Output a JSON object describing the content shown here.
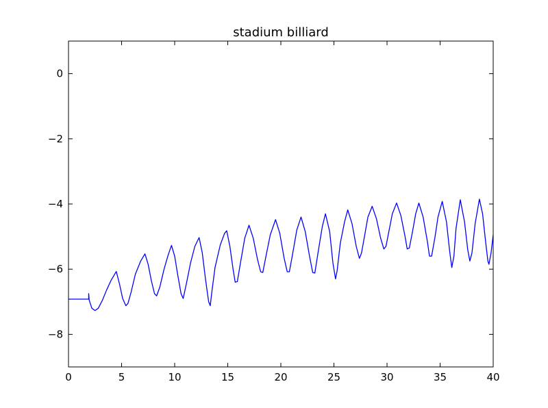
{
  "chart_data": {
    "type": "line",
    "title": "stadium billiard",
    "xlabel": "",
    "ylabel": "",
    "xlim": [
      0,
      40
    ],
    "ylim": [
      -9,
      1
    ],
    "x_ticks": [
      0,
      5,
      10,
      15,
      20,
      25,
      30,
      35,
      40
    ],
    "y_ticks": [
      0,
      -2,
      -4,
      -6,
      -8
    ],
    "x_tick_labels": [
      "0",
      "5",
      "10",
      "15",
      "20",
      "25",
      "30",
      "35",
      "40"
    ],
    "y_tick_labels": [
      "0",
      "−2",
      "−4",
      "−6",
      "−8"
    ],
    "grid": false,
    "legend": "none",
    "line_color": "#0000ff",
    "series": [
      {
        "points": [
          [
            0.0,
            -6.92
          ],
          [
            1.9,
            -6.92
          ],
          [
            1.9,
            -6.75
          ],
          [
            1.95,
            -6.95
          ],
          [
            2.2,
            -7.2
          ],
          [
            2.5,
            -7.27
          ],
          [
            2.8,
            -7.2
          ],
          [
            3.2,
            -6.95
          ],
          [
            3.6,
            -6.63
          ],
          [
            4.0,
            -6.35
          ],
          [
            4.5,
            -6.07
          ],
          [
            4.8,
            -6.45
          ],
          [
            5.1,
            -6.9
          ],
          [
            5.4,
            -7.12
          ],
          [
            5.6,
            -7.05
          ],
          [
            5.9,
            -6.7
          ],
          [
            6.3,
            -6.15
          ],
          [
            6.8,
            -5.75
          ],
          [
            7.2,
            -5.53
          ],
          [
            7.5,
            -5.85
          ],
          [
            7.8,
            -6.35
          ],
          [
            8.1,
            -6.75
          ],
          [
            8.3,
            -6.82
          ],
          [
            8.6,
            -6.55
          ],
          [
            9.0,
            -6.0
          ],
          [
            9.4,
            -5.55
          ],
          [
            9.7,
            -5.27
          ],
          [
            10.0,
            -5.6
          ],
          [
            10.3,
            -6.2
          ],
          [
            10.6,
            -6.75
          ],
          [
            10.8,
            -6.9
          ],
          [
            11.1,
            -6.45
          ],
          [
            11.5,
            -5.8
          ],
          [
            11.9,
            -5.3
          ],
          [
            12.3,
            -5.03
          ],
          [
            12.6,
            -5.5
          ],
          [
            12.9,
            -6.3
          ],
          [
            13.2,
            -7.0
          ],
          [
            13.35,
            -7.12
          ],
          [
            13.5,
            -6.7
          ],
          [
            13.8,
            -5.95
          ],
          [
            14.3,
            -5.25
          ],
          [
            14.7,
            -4.9
          ],
          [
            14.9,
            -4.82
          ],
          [
            15.2,
            -5.3
          ],
          [
            15.5,
            -6.0
          ],
          [
            15.7,
            -6.4
          ],
          [
            15.9,
            -6.38
          ],
          [
            16.2,
            -5.8
          ],
          [
            16.6,
            -5.05
          ],
          [
            17.0,
            -4.65
          ],
          [
            17.4,
            -5.05
          ],
          [
            17.8,
            -5.7
          ],
          [
            18.1,
            -6.08
          ],
          [
            18.3,
            -6.1
          ],
          [
            18.6,
            -5.6
          ],
          [
            19.0,
            -4.95
          ],
          [
            19.5,
            -4.48
          ],
          [
            19.9,
            -4.9
          ],
          [
            20.3,
            -5.65
          ],
          [
            20.6,
            -6.08
          ],
          [
            20.8,
            -6.08
          ],
          [
            21.1,
            -5.55
          ],
          [
            21.5,
            -4.8
          ],
          [
            21.9,
            -4.4
          ],
          [
            22.3,
            -4.85
          ],
          [
            22.7,
            -5.6
          ],
          [
            23.0,
            -6.1
          ],
          [
            23.2,
            -6.12
          ],
          [
            23.5,
            -5.5
          ],
          [
            23.9,
            -4.7
          ],
          [
            24.2,
            -4.3
          ],
          [
            24.6,
            -4.85
          ],
          [
            24.9,
            -5.8
          ],
          [
            25.15,
            -6.3
          ],
          [
            25.3,
            -6.05
          ],
          [
            25.6,
            -5.2
          ],
          [
            26.0,
            -4.55
          ],
          [
            26.3,
            -4.18
          ],
          [
            26.7,
            -4.6
          ],
          [
            27.1,
            -5.3
          ],
          [
            27.4,
            -5.67
          ],
          [
            27.6,
            -5.5
          ],
          [
            27.9,
            -4.95
          ],
          [
            28.2,
            -4.4
          ],
          [
            28.6,
            -4.07
          ],
          [
            29.0,
            -4.45
          ],
          [
            29.4,
            -5.05
          ],
          [
            29.7,
            -5.38
          ],
          [
            29.9,
            -5.3
          ],
          [
            30.2,
            -4.8
          ],
          [
            30.5,
            -4.3
          ],
          [
            30.9,
            -3.97
          ],
          [
            31.3,
            -4.35
          ],
          [
            31.7,
            -5.0
          ],
          [
            31.9,
            -5.38
          ],
          [
            32.1,
            -5.35
          ],
          [
            32.4,
            -4.85
          ],
          [
            32.7,
            -4.3
          ],
          [
            33.0,
            -3.97
          ],
          [
            33.4,
            -4.4
          ],
          [
            33.8,
            -5.15
          ],
          [
            34.0,
            -5.6
          ],
          [
            34.2,
            -5.6
          ],
          [
            34.5,
            -5.05
          ],
          [
            34.8,
            -4.4
          ],
          [
            35.2,
            -3.92
          ],
          [
            35.6,
            -4.55
          ],
          [
            35.9,
            -5.45
          ],
          [
            36.1,
            -5.95
          ],
          [
            36.3,
            -5.6
          ],
          [
            36.5,
            -4.75
          ],
          [
            36.9,
            -3.87
          ],
          [
            37.3,
            -4.55
          ],
          [
            37.6,
            -5.4
          ],
          [
            37.8,
            -5.75
          ],
          [
            38.0,
            -5.5
          ],
          [
            38.3,
            -4.6
          ],
          [
            38.7,
            -3.85
          ],
          [
            39.0,
            -4.3
          ],
          [
            39.3,
            -5.2
          ],
          [
            39.5,
            -5.75
          ],
          [
            39.6,
            -5.85
          ],
          [
            39.8,
            -5.5
          ],
          [
            40.0,
            -4.95
          ]
        ]
      }
    ]
  }
}
